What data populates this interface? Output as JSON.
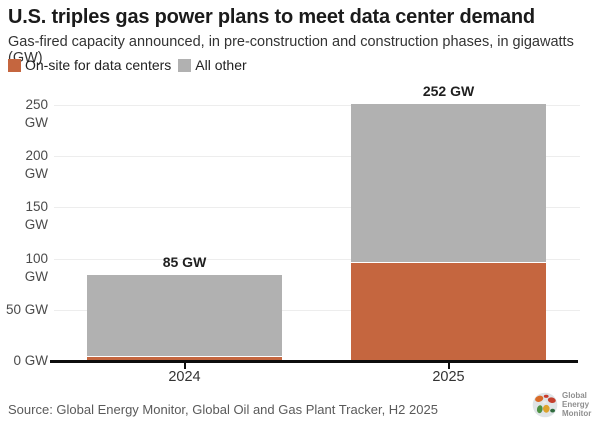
{
  "header": {
    "title": "U.S. triples gas power plans to meet data center demand",
    "subtitle": "Gas-fired capacity announced, in pre-construction and construction phases, in gigawatts (GW)"
  },
  "chart_data": {
    "type": "bar",
    "stacked": true,
    "categories": [
      "2024",
      "2025"
    ],
    "series": [
      {
        "name": "On-site for data centers",
        "color": "#c5663f",
        "values": [
          5,
          97
        ]
      },
      {
        "name": "All other",
        "color": "#b1b1b1",
        "values": [
          80,
          155
        ]
      }
    ],
    "totals": [
      85,
      252
    ],
    "total_labels": [
      "85 GW",
      "252 GW"
    ],
    "yticks": [
      0,
      50,
      100,
      150,
      200,
      250
    ],
    "ytick_labels": [
      "0 GW",
      "50 GW",
      "100 GW",
      "150 GW",
      "200 GW",
      "250 GW"
    ],
    "ylim": [
      0,
      260
    ],
    "grid": "horizontal",
    "legend_position": "top-left",
    "title": "U.S. triples gas power plans to meet data center demand",
    "ylabel": "gigawatts (GW)"
  },
  "footer": {
    "source": "Source: Global Energy Monitor, Global Oil and Gas Plant Tracker, H2 2025",
    "logo": {
      "line1": "Global",
      "line2": "Energy",
      "line3": "Monitor"
    }
  },
  "colors": {
    "on_site": "#c5663f",
    "all_other": "#b1b1b1",
    "axis": "#0d0d0d",
    "gridline": "#ededed",
    "title_text": "#1b1b1b",
    "background": "#ffffff"
  }
}
